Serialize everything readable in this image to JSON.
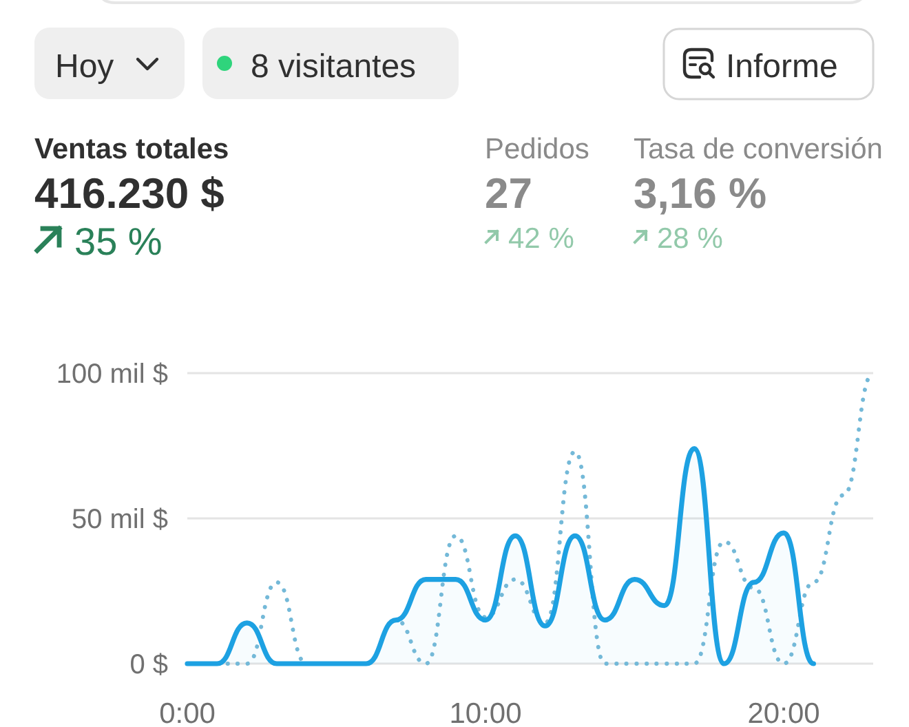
{
  "chart_data": [
    {
      "type": "other",
      "annotations": [
        "Hoy",
        "8 visitantes",
        "Informe",
        "Ventas totales",
        "416.230 $",
        "35 %",
        "Pedidos",
        "27",
        "42 %",
        "Tasa de conversión",
        "3,16 %",
        "28 %"
      ]
    },
    {
      "type": "line",
      "xlim": [
        0,
        23
      ],
      "xticks": [
        {
          "value": 0,
          "label": "0:00"
        },
        {
          "value": 10,
          "label": "10:00"
        },
        {
          "value": 20,
          "label": "20:00"
        }
      ],
      "ylim": [
        0,
        100
      ],
      "yticks": [
        {
          "value": 0,
          "label": "0 $"
        },
        {
          "value": 50,
          "label": "50 mil $"
        },
        {
          "value": 100,
          "label": "100 mil $"
        }
      ],
      "grid": "y",
      "series": [
        {
          "type": "line",
          "color": "#74b9d8",
          "line_style": "dotted",
          "x": [
            0,
            1,
            2,
            3,
            4,
            5,
            6,
            7,
            8,
            9,
            10,
            11,
            12,
            13,
            14,
            15,
            16,
            17,
            18,
            19,
            20,
            21,
            22,
            23
          ],
          "values": [
            0,
            0,
            0,
            28,
            0,
            0,
            0,
            15,
            0,
            44,
            16,
            29,
            14,
            73,
            0,
            0,
            0,
            0,
            42,
            26,
            0,
            28,
            58,
            100
          ]
        },
        {
          "type": "area",
          "color": "#1da1e2",
          "x": [
            0,
            1,
            2,
            3,
            4,
            5,
            6,
            7,
            8,
            9,
            10,
            11,
            12,
            13,
            14,
            15,
            16,
            17,
            18,
            19,
            20,
            21
          ],
          "values": [
            0,
            0,
            14,
            0,
            0,
            0,
            0,
            15,
            29,
            29,
            15,
            44,
            13,
            44,
            15,
            29,
            20,
            74,
            0,
            28,
            45,
            0
          ]
        }
      ]
    }
  ]
}
